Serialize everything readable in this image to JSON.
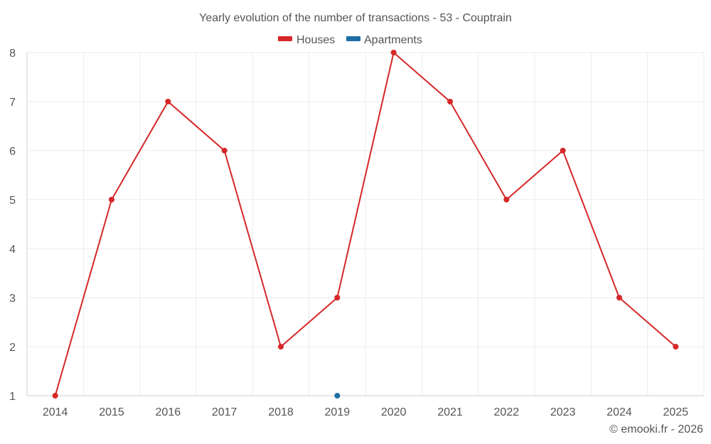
{
  "chart_data": {
    "type": "line",
    "title": "Yearly evolution of the number of transactions - 53 - Couptrain",
    "categories": [
      "2014",
      "2015",
      "2016",
      "2017",
      "2018",
      "2019",
      "2020",
      "2021",
      "2022",
      "2023",
      "2024",
      "2025"
    ],
    "series": [
      {
        "name": "Houses",
        "color": "#d62728",
        "values": [
          1,
          5,
          7,
          6,
          2,
          3,
          8,
          7,
          5,
          6,
          3,
          2
        ]
      },
      {
        "name": "Apartments",
        "color": "#1f6fa5",
        "values": [
          null,
          null,
          null,
          null,
          null,
          1,
          null,
          null,
          null,
          null,
          null,
          null
        ]
      }
    ],
    "ylim": [
      1,
      8
    ],
    "yticks": [
      "1",
      "2",
      "3",
      "4",
      "5",
      "6",
      "7",
      "8"
    ],
    "xlabel": "",
    "ylabel": "",
    "grid": true,
    "legend": "top-center"
  },
  "credit": "© emooki.fr - 2026"
}
